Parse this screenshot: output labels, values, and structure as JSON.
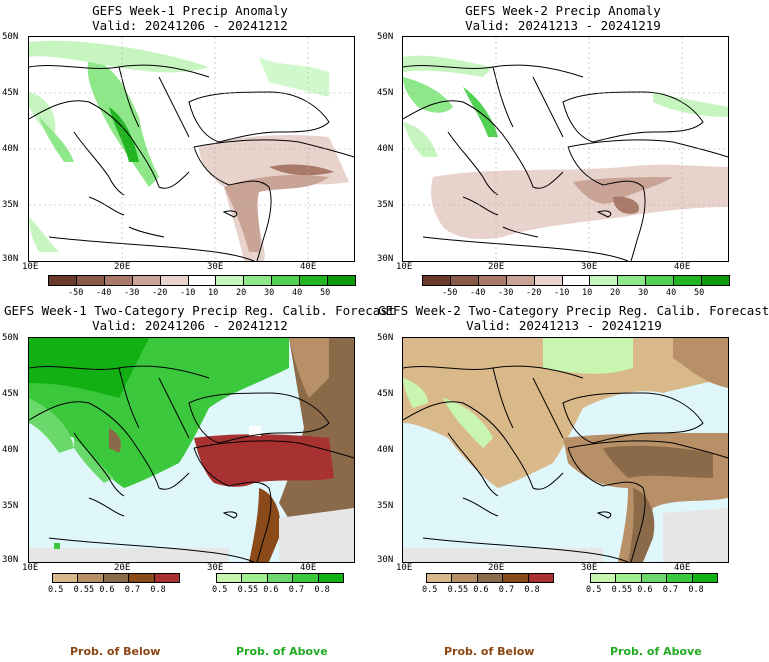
{
  "panels": [
    {
      "title_line1": "GEFS Week-1 Precip Anomaly",
      "title_line2": "Valid: 20241206 - 20241212"
    },
    {
      "title_line1": "GEFS Week-2 Precip Anomaly",
      "title_line2": "Valid: 20241213 - 20241219"
    },
    {
      "title_line1": "GEFS Week-1 Two-Category Precip Reg. Calib. Forecast",
      "title_line2": "Valid: 20241206 - 20241212"
    },
    {
      "title_line1": "GEFS Week-2 Two-Category Precip Reg. Calib. Forecast",
      "title_line2": "Valid: 20241213 - 20241219"
    }
  ],
  "axes": {
    "lat_labels": [
      "50N",
      "45N",
      "40N",
      "35N",
      "30N"
    ],
    "lon_labels": [
      "10E",
      "20E",
      "30E",
      "40E"
    ]
  },
  "anomaly_colorbar": {
    "ticks": [
      "-50",
      "-40",
      "-30",
      "-20",
      "-10",
      "10",
      "20",
      "30",
      "40",
      "50"
    ],
    "colors": [
      "#6b3a2a",
      "#8a5a48",
      "#a97a6a",
      "#c9a396",
      "#e8d3cc",
      "#ffffff",
      "#c6f5c0",
      "#8ee88a",
      "#52d152",
      "#22b522",
      "#0a9a0a"
    ]
  },
  "prob_colorbar": {
    "below_ticks": [
      "0.5",
      "0.55",
      "0.6",
      "0.7",
      "0.8"
    ],
    "above_ticks": [
      "0.5",
      "0.55",
      "0.6",
      "0.7",
      "0.8"
    ],
    "below_colors": [
      "#d9b98a",
      "#b89068",
      "#8b6a4a",
      "#8b4a1a",
      "#a83232"
    ],
    "above_colors": [
      "#c8f5b0",
      "#a0ee90",
      "#6ad86a",
      "#3cc83c",
      "#12b012"
    ],
    "below_label": "Prob. of Below",
    "above_label": "Prob. of Above"
  },
  "colors": {
    "sea": "#dff7fb",
    "land_gray": "#e6e6e6",
    "below_label_color": "#8b4513",
    "above_label_color": "#22aa22"
  }
}
